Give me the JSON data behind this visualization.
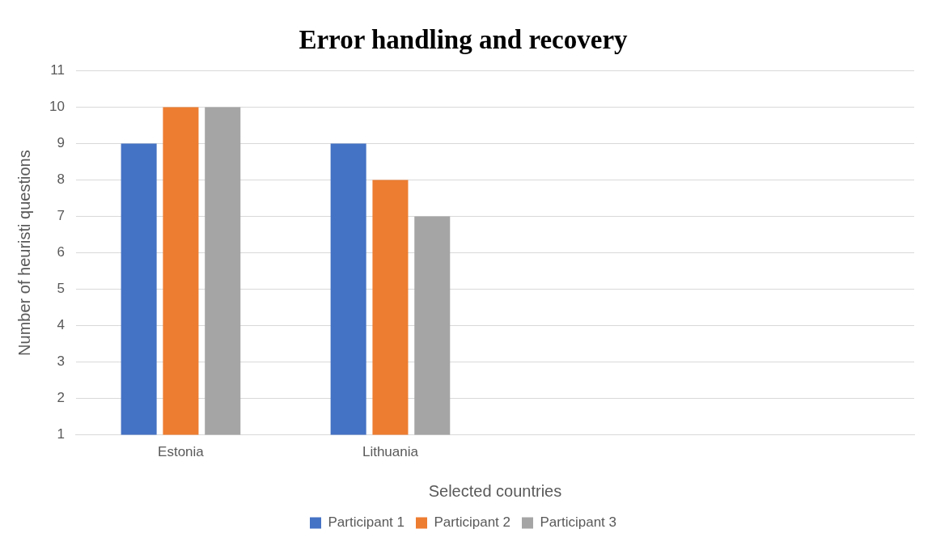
{
  "chart_data": {
    "type": "bar",
    "title": "Error handling and recovery",
    "xlabel": "Selected countries",
    "ylabel": "Number of heuristi questions",
    "categories": [
      "Estonia",
      "Lithuania",
      null,
      null
    ],
    "series": [
      {
        "name": "Participant 1",
        "color": "#4472c4",
        "values": [
          9,
          9,
          null,
          null
        ]
      },
      {
        "name": "Participant 2",
        "color": "#ed7d31",
        "values": [
          10,
          8,
          null,
          null
        ]
      },
      {
        "name": "Participant 3",
        "color": "#a5a5a5",
        "values": [
          10,
          7,
          null,
          null
        ]
      }
    ],
    "ylim": [
      1,
      11
    ],
    "yticks": [
      1,
      2,
      3,
      4,
      5,
      6,
      7,
      8,
      9,
      10,
      11
    ],
    "grid": "y",
    "legend": "bottom"
  }
}
